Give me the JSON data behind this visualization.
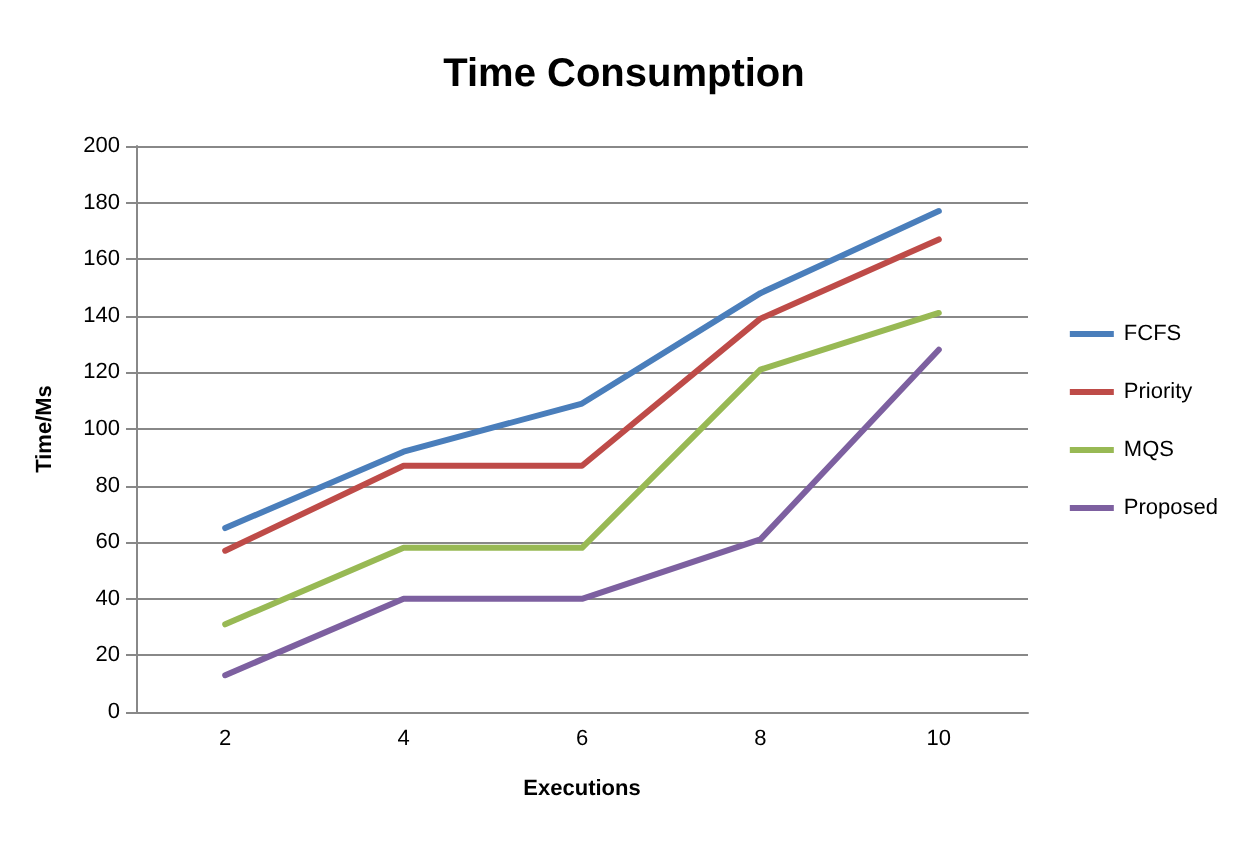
{
  "chart_data": {
    "type": "line",
    "title": "Time Consumption",
    "xlabel": "Executions",
    "ylabel": "Time/Ms",
    "categories": [
      "2",
      "4",
      "6",
      "8",
      "10"
    ],
    "series": [
      {
        "name": "FCFS",
        "color": "#4a7ebb",
        "values": [
          65,
          92,
          109,
          148,
          177
        ]
      },
      {
        "name": "Priority",
        "color": "#be4b48",
        "values": [
          57,
          87,
          87,
          139,
          167
        ]
      },
      {
        "name": "MQS",
        "color": "#98b954",
        "values": [
          31,
          58,
          58,
          121,
          141
        ]
      },
      {
        "name": "Proposed",
        "color": "#7d60a0",
        "values": [
          13,
          40,
          40,
          61,
          128
        ]
      }
    ],
    "ylim": [
      0,
      200
    ],
    "yticks": [
      0,
      20,
      40,
      60,
      80,
      100,
      120,
      140,
      160,
      180,
      200
    ],
    "grid": "y",
    "legend": "right",
    "marker": "none",
    "line_style": "solid"
  }
}
